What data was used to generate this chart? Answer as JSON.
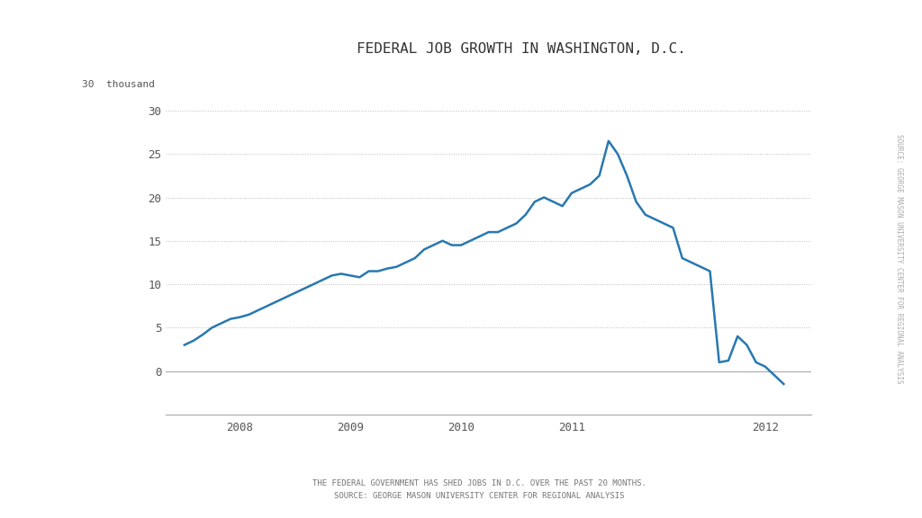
{
  "title": "FEDERAL JOB GROWTH IN WASHINGTON, D.C.",
  "ylabel_text": "30  thousand",
  "subtitle_line1": "THE FEDERAL GOVERNMENT HAS SHED JOBS IN D.C. OVER THE PAST 20 MONTHS.",
  "subtitle_line2": "SOURCE: GEORGE MASON UNIVERSITY CENTER FOR REGIONAL ANALYSIS",
  "side_label": "SOURCE: GEORGE MASON UNIVERSITY CENTER FOR REGIONAL ANALYSIS",
  "background_color": "#ffffff",
  "line_color": "#2878b0",
  "grid_color": "#bbbbbb",
  "text_color": "#555555",
  "ylim": [
    -5,
    32
  ],
  "yticks": [
    0,
    5,
    10,
    15,
    20,
    25,
    30
  ],
  "y_data": [
    3.0,
    3.5,
    4.2,
    5.0,
    5.5,
    6.0,
    6.2,
    6.5,
    7.0,
    7.5,
    8.0,
    8.5,
    9.0,
    9.5,
    10.0,
    10.5,
    11.0,
    11.2,
    11.0,
    10.8,
    11.5,
    11.5,
    11.8,
    12.0,
    12.5,
    13.0,
    14.0,
    14.5,
    15.0,
    14.5,
    14.5,
    15.0,
    15.5,
    16.0,
    16.0,
    16.5,
    17.0,
    18.0,
    19.5,
    20.0,
    19.5,
    19.0,
    20.5,
    21.0,
    21.5,
    22.5,
    26.5,
    25.0,
    22.5,
    19.5,
    18.0,
    17.5,
    17.0,
    16.5,
    13.0,
    12.5,
    12.0,
    11.5,
    1.0,
    1.2,
    4.0,
    3.0,
    1.0,
    0.5,
    -0.5,
    -1.5
  ],
  "xtick_positions": [
    6,
    18,
    30,
    42,
    54,
    63
  ],
  "xtick_labels": [
    "2008",
    "2009",
    "2010",
    "2011",
    "",
    "2012"
  ]
}
